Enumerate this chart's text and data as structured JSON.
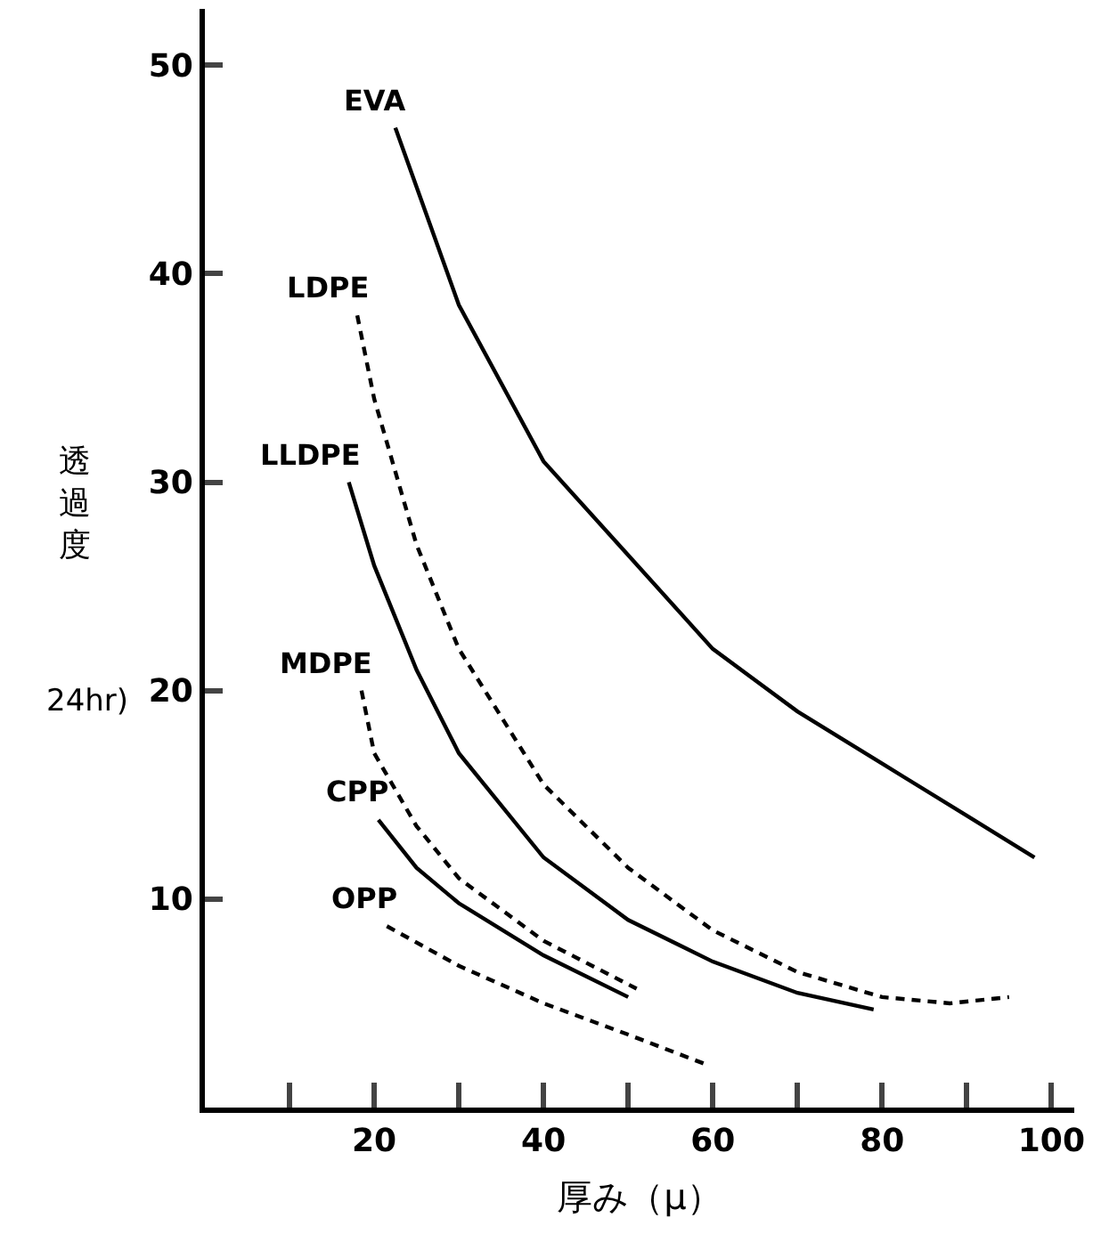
{
  "chart_data": {
    "type": "line",
    "xlabel": "厚み（μ）",
    "ylabel": "透過度",
    "annotations": [
      "24hr)"
    ],
    "xlim": [
      0,
      102.7
    ],
    "ylim": [
      0,
      52.7
    ],
    "xticks": [
      {
        "value": 10,
        "label": null
      },
      20,
      {
        "value": 30,
        "label": null
      },
      40,
      {
        "value": 50,
        "label": null
      },
      60,
      {
        "value": 70,
        "label": null
      },
      80,
      {
        "value": 90,
        "label": null
      },
      100
    ],
    "yticks": [
      10,
      20,
      30,
      40,
      50
    ],
    "legend": false,
    "marker": "none",
    "series": [
      {
        "name": "EVA",
        "color": "#000000",
        "line_style": "solid",
        "x": [
          22.5,
          30,
          40,
          50,
          60,
          70,
          80,
          90,
          98
        ],
        "values": [
          47,
          38.5,
          31,
          26.5,
          22,
          19,
          16.5,
          14,
          12
        ]
      },
      {
        "name": "LDPE",
        "color": "#000000",
        "line_style": "dashed",
        "x": [
          18,
          20,
          25,
          30,
          40,
          50,
          60,
          70,
          80,
          88,
          95
        ],
        "values": [
          38,
          34,
          27,
          22,
          15.5,
          11.5,
          8.5,
          6.5,
          5.3,
          5,
          5.3
        ]
      },
      {
        "name": "LLDPE",
        "color": "#000000",
        "line_style": "solid",
        "x": [
          17,
          20,
          25,
          30,
          40,
          50,
          60,
          70,
          79
        ],
        "values": [
          30,
          26,
          21,
          17,
          12,
          9,
          7,
          5.5,
          4.7
        ]
      },
      {
        "name": "MDPE",
        "color": "#000000",
        "line_style": "dashed",
        "x": [
          18.5,
          20,
          25,
          30,
          40,
          51
        ],
        "values": [
          20,
          17,
          13.5,
          11,
          8,
          5.7
        ]
      },
      {
        "name": "CPP",
        "color": "#000000",
        "line_style": "solid",
        "x": [
          20.5,
          25,
          30,
          40,
          50
        ],
        "values": [
          13.8,
          11.5,
          9.8,
          7.3,
          5.3
        ]
      },
      {
        "name": "OPP",
        "color": "#000000",
        "line_style": "dashed",
        "x": [
          21.5,
          30,
          40,
          50,
          59
        ],
        "values": [
          8.7,
          6.8,
          5,
          3.5,
          2.1
        ]
      }
    ]
  }
}
